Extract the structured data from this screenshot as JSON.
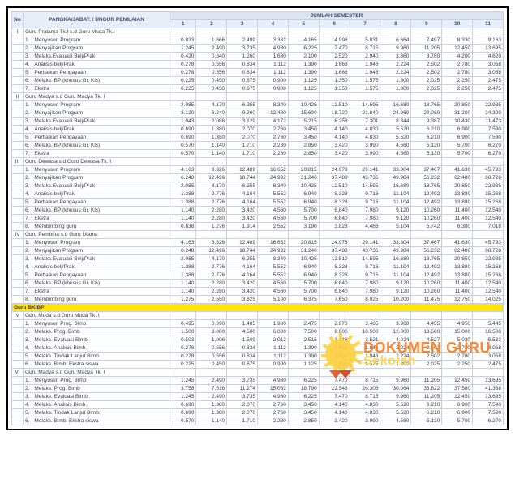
{
  "header": {
    "no": "No",
    "pangkat": "PANGKA/JABAT. / UNGUR PENILAIAN",
    "jumlah": "JUMLAH SEMESTER",
    "cols": [
      "1",
      "2",
      "3",
      "4",
      "5",
      "6",
      "7",
      "8",
      "9",
      "10",
      "11"
    ]
  },
  "groups": [
    {
      "roman": "I",
      "title": "Guru Pratama Tk.I s.d Guru Muda Tk.I",
      "rows": [
        {
          "n": "1.",
          "l": "Menyusun Program",
          "v": [
            "0.833",
            "1.666",
            "2.499",
            "3.332",
            "4.165",
            "4.998",
            "5.831",
            "6.664",
            "7.497",
            "8.330",
            "9.163"
          ]
        },
        {
          "n": "2.",
          "l": "Menyajikan Program",
          "v": [
            "1.245",
            "2.490",
            "3.735",
            "4.980",
            "6.225",
            "7.470",
            "8.715",
            "9.960",
            "11.205",
            "12.450",
            "13.695"
          ]
        },
        {
          "n": "3.",
          "l": "Melaks.Evaluasi Belj/Prak",
          "v": [
            "0.420",
            "0.840",
            "1.260",
            "1.680",
            "2.100",
            "2.520",
            "2.940",
            "3.360",
            "3.780",
            "4.200",
            "4.620"
          ]
        },
        {
          "n": "4.",
          "l": "Analisis belj/Prak",
          "v": [
            "0.278",
            "0.556",
            "0.834",
            "1.112",
            "1.390",
            "1.668",
            "1.946",
            "2.224",
            "2.502",
            "2.780",
            "3.058"
          ]
        },
        {
          "n": "5.",
          "l": "Perbaikan Pengayaan",
          "v": [
            "0.278",
            "0.556",
            "0.834",
            "1.112",
            "1.390",
            "1.668",
            "1.946",
            "2.224",
            "2.502",
            "2.780",
            "3.058"
          ]
        },
        {
          "n": "6.",
          "l": "Melaks. BP (khusus Gr. Kls)",
          "v": [
            "0.225",
            "0.450",
            "0.675",
            "0.900",
            "1.125",
            "1.350",
            "1.575",
            "1.800",
            "2.025",
            "2.250",
            "2.475"
          ]
        },
        {
          "n": "7.",
          "l": "Ekstra",
          "v": [
            "0.225",
            "0.450",
            "0.675",
            "0.900",
            "1.125",
            "1.350",
            "1.575",
            "1.800",
            "2.025",
            "2.250",
            "2.475"
          ]
        }
      ]
    },
    {
      "roman": "II",
      "title": "Guru Madya s.d Guru Madya Tk. I",
      "rows": [
        {
          "n": "1.",
          "l": "Menyusun Program",
          "v": [
            "2.085",
            "4.170",
            "6.255",
            "8.340",
            "10.425",
            "12.510",
            "14.595",
            "16.680",
            "18.765",
            "20.850",
            "22.935"
          ]
        },
        {
          "n": "2.",
          "l": "Menyajikan Program",
          "v": [
            "3.120",
            "6.240",
            "9.360",
            "12.480",
            "15.600",
            "18.720",
            "21.840",
            "24.960",
            "28.080",
            "31.200",
            "34.320"
          ]
        },
        {
          "n": "3.",
          "l": "Melaks.Evaluasi Belj/Prak",
          "v": [
            "1.043",
            "2.086",
            "3.129",
            "4.172",
            "5.215",
            "6.258",
            "7.301",
            "8.344",
            "9.387",
            "10.430",
            "11.473"
          ]
        },
        {
          "n": "4.",
          "l": "Analisis belj/Prak",
          "v": [
            "0.690",
            "1.380",
            "2.070",
            "2.760",
            "3.450",
            "4.140",
            "4.830",
            "5.520",
            "6.210",
            "6.900",
            "7.590"
          ]
        },
        {
          "n": "5.",
          "l": "Perbaikan Pengayaan",
          "v": [
            "0.690",
            "1.380",
            "2.070",
            "2.760",
            "3.450",
            "4.140",
            "4.830",
            "5.520",
            "6.210",
            "6.900",
            "7.590"
          ]
        },
        {
          "n": "6.",
          "l": "Melaks. BP (khusus Gr. Kls)",
          "v": [
            "0.570",
            "1.140",
            "1.710",
            "2.280",
            "2.850",
            "3.420",
            "3.990",
            "4.560",
            "5.130",
            "5.700",
            "6.270"
          ]
        },
        {
          "n": "7.",
          "l": "Ekstra",
          "v": [
            "0.570",
            "1.140",
            "1.710",
            "2.280",
            "2.850",
            "3.420",
            "3.990",
            "4.560",
            "5.130",
            "5.700",
            "6.270"
          ]
        }
      ]
    },
    {
      "roman": "III",
      "title": "Guru Dewasa s.d Guru Dewasa Tk. I",
      "rows": [
        {
          "n": "1.",
          "l": "Menyusun Program",
          "v": [
            "4.163",
            "8.326",
            "12.489",
            "16.652",
            "20.815",
            "24.978",
            "29.141",
            "33.304",
            "37.467",
            "41.630",
            "45.793"
          ]
        },
        {
          "n": "2.",
          "l": "Menyajikan Program",
          "v": [
            "6.248",
            "12.496",
            "18.744",
            "24.992",
            "31.240",
            "37.488",
            "43.736",
            "49.984",
            "56.232",
            "62.480",
            "68.728"
          ]
        },
        {
          "n": "3.",
          "l": "Melaks.Evaluasi Belj/Prak",
          "v": [
            "2.085",
            "4.170",
            "6.255",
            "8.340",
            "10.425",
            "12.510",
            "14.595",
            "16.680",
            "18.765",
            "20.850",
            "22.935"
          ]
        },
        {
          "n": "4.",
          "l": "Analisis belj/Prak",
          "v": [
            "1.388",
            "2.776",
            "4.164",
            "5.552",
            "6.940",
            "8.328",
            "9.716",
            "11.104",
            "12.492",
            "13.880",
            "15.268"
          ]
        },
        {
          "n": "5.",
          "l": "Perbaikan Pengayaan",
          "v": [
            "1.388",
            "2.776",
            "4.164",
            "5.552",
            "6.940",
            "8.328",
            "9.716",
            "11.104",
            "12.492",
            "13.880",
            "15.268"
          ]
        },
        {
          "n": "6.",
          "l": "Melaks. BP (khusus Gr. Kls)",
          "v": [
            "1.140",
            "2.280",
            "3.420",
            "4.560",
            "5.700",
            "6.840",
            "7.980",
            "9.120",
            "10.260",
            "11.400",
            "12.540"
          ]
        },
        {
          "n": "7.",
          "l": "Ekstra",
          "v": [
            "1.140",
            "2.280",
            "3.420",
            "4.560",
            "5.700",
            "6.840",
            "7.980",
            "9.120",
            "10.260",
            "11.400",
            "12.540"
          ]
        },
        {
          "n": "8.",
          "l": "Membimbing guru",
          "v": [
            "0.638",
            "1.276",
            "1.914",
            "2.552",
            "3.190",
            "3.828",
            "4.466",
            "5.104",
            "5.742",
            "6.380",
            "7.018"
          ]
        }
      ]
    },
    {
      "roman": "IV",
      "title": "Guru Pembina s.d Guru Utama",
      "rows": [
        {
          "n": "1.",
          "l": "Menyusun Program",
          "v": [
            "4.163",
            "8.326",
            "12.489",
            "16.652",
            "20.815",
            "24.978",
            "29.141",
            "33.304",
            "37.467",
            "41.630",
            "45.793"
          ]
        },
        {
          "n": "2.",
          "l": "Menyajikan Program",
          "v": [
            "6.248",
            "12.496",
            "18.744",
            "24.992",
            "31.240",
            "37.488",
            "43.736",
            "49.984",
            "56.232",
            "62.480",
            "68.728"
          ]
        },
        {
          "n": "3.",
          "l": "Melaks.Evaluasi Belj/Prak",
          "v": [
            "2.085",
            "4.170",
            "6.255",
            "8.340",
            "10.425",
            "12.510",
            "14.595",
            "16.680",
            "18.765",
            "20.850",
            "22.935"
          ]
        },
        {
          "n": "4.",
          "l": "Analisis belj/Prak",
          "v": [
            "1.388",
            "2.776",
            "4.164",
            "5.552",
            "6.940",
            "8.328",
            "9.716",
            "11.104",
            "12.492",
            "13.880",
            "15.268"
          ]
        },
        {
          "n": "5.",
          "l": "Perbaikan Pengayaan",
          "v": [
            "1.388",
            "2.776",
            "4.164",
            "5.552",
            "6.940",
            "8.328",
            "9.716",
            "11.104",
            "12.492",
            "13.880",
            "15.268"
          ]
        },
        {
          "n": "6.",
          "l": "Melaks. BP (khusus Gr. Kls)",
          "v": [
            "1.140",
            "2.280",
            "3.420",
            "4.560",
            "5.700",
            "6.840",
            "7.980",
            "9.120",
            "10.260",
            "11.400",
            "12.540"
          ]
        },
        {
          "n": "7.",
          "l": "Ekstra",
          "v": [
            "1.140",
            "2.280",
            "3.420",
            "4.560",
            "5.700",
            "6.840",
            "7.980",
            "9.120",
            "10.260",
            "11.400",
            "12.540"
          ]
        },
        {
          "n": "8.",
          "l": "Membimbing guru",
          "v": [
            "1.275",
            "2.550",
            "3.825",
            "5.100",
            "6.375",
            "7.650",
            "8.925",
            "10.200",
            "11.475",
            "12.750",
            "14.025"
          ]
        }
      ]
    }
  ],
  "highlight": {
    "title": "Guru BK/BP"
  },
  "groups2": [
    {
      "roman": "V",
      "title": "Guru Muda s.d Guru Muda Tk. I",
      "rows": [
        {
          "n": "1.",
          "l": "Menyusun Prog. Bimb",
          "v": [
            "0.495",
            "0.990",
            "1.485",
            "1.980",
            "2.475",
            "2.970",
            "3.465",
            "3.960",
            "4.455",
            "4.950",
            "5.445"
          ]
        },
        {
          "n": "2.",
          "l": "Melaks. Prog. Bimb",
          "v": [
            "1.500",
            "3.000",
            "4.500",
            "6.000",
            "7.500",
            "9.000",
            "10.500",
            "12.000",
            "13.500",
            "15.000",
            "16.500"
          ]
        },
        {
          "n": "3.",
          "l": "Melaks. Evaluasi Bimb.",
          "v": [
            "0.503",
            "1.006",
            "1.509",
            "2.012",
            "2.515",
            "3.018",
            "3.521",
            "4.024",
            "4.527",
            "5.030",
            "5.533"
          ]
        },
        {
          "n": "4.",
          "l": "Melaks. Analisis Bimb.",
          "v": [
            "0.278",
            "0.556",
            "0.834",
            "1.112",
            "1.390",
            "1.668",
            "1.946",
            "2.224",
            "2.502",
            "2.780",
            "3.058"
          ]
        },
        {
          "n": "5.",
          "l": "Melaks. Tindak Lanjut Bimb.",
          "v": [
            "0.278",
            "0.556",
            "0.834",
            "1.112",
            "1.390",
            "1.668",
            "1.946",
            "2.224",
            "2.502",
            "2.780",
            "3.058"
          ]
        },
        {
          "n": "6.",
          "l": "Melaks. Bimb. Ekstra siswa",
          "v": [
            "0.225",
            "0.450",
            "0.675",
            "0.900",
            "1.125",
            "1.350",
            "1.575",
            "1.800",
            "2.025",
            "2.250",
            "2.475"
          ]
        }
      ]
    },
    {
      "roman": "VI",
      "title": "Guru Madya s.d Guru Madya Tk. I",
      "rows": [
        {
          "n": "1.",
          "l": "Menyusun Prog. Bimb",
          "v": [
            "1.245",
            "2.490",
            "3.735",
            "4.980",
            "6.225",
            "7.470",
            "8.715",
            "9.960",
            "11.205",
            "12.450",
            "13.695"
          ]
        },
        {
          "n": "2.",
          "l": "Melaks. Prog. Bimb",
          "v": [
            "3.758",
            "7.516",
            "11.274",
            "15.032",
            "18.790",
            "22.548",
            "26.306",
            "30.064",
            "33.822",
            "37.580",
            "41.338"
          ]
        },
        {
          "n": "3.",
          "l": "Melaks. Evaluasi Bimb.",
          "v": [
            "1.245",
            "2.490",
            "3.735",
            "4.980",
            "6.225",
            "7.470",
            "8.715",
            "9.960",
            "11.205",
            "12.450",
            "13.695"
          ]
        },
        {
          "n": "4.",
          "l": "Melaks. Analisis Bimb.",
          "v": [
            "0.690",
            "1.380",
            "2.070",
            "2.760",
            "3.450",
            "4.140",
            "4.830",
            "5.520",
            "6.210",
            "6.900",
            "7.590"
          ]
        },
        {
          "n": "5.",
          "l": "Melaks. Tindak Lanjut Bimb.",
          "v": [
            "0.690",
            "1.380",
            "2.070",
            "2.760",
            "3.450",
            "4.140",
            "4.830",
            "5.520",
            "6.210",
            "6.900",
            "7.590"
          ]
        },
        {
          "n": "6.",
          "l": "Melaks. Bimb. Ekstra siswa",
          "v": [
            "0.570",
            "1.140",
            "1.710",
            "2.280",
            "2.850",
            "3.420",
            "3.990",
            "4.560",
            "5.130",
            "5.700",
            "6.270"
          ]
        }
      ]
    }
  ],
  "watermark": {
    "l1": "DOKUMEN GURU",
    "l2": "Sekolah"
  }
}
